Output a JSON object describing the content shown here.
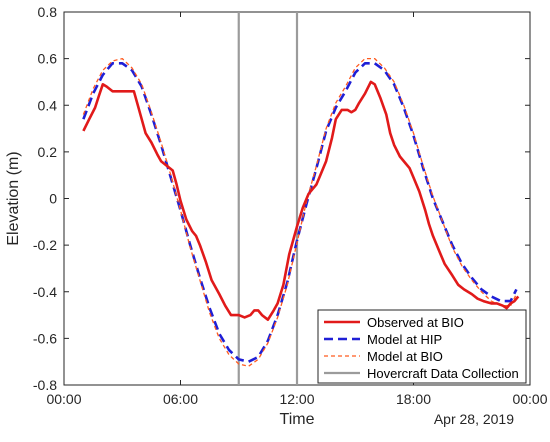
{
  "chart_data": {
    "type": "line",
    "title": "",
    "xlabel": "Time",
    "ylabel": "Elevation (m)",
    "annotation": "Apr 28, 2019",
    "xlim": [
      0,
      24
    ],
    "ylim": [
      -0.8,
      0.8
    ],
    "x_ticks": [
      0,
      6,
      12,
      18,
      24
    ],
    "x_tick_labels": [
      "00:00",
      "06:00",
      "12:00",
      "18:00",
      "00:00"
    ],
    "y_ticks": [
      -0.8,
      -0.6,
      -0.4,
      -0.2,
      0,
      0.2,
      0.4,
      0.6,
      0.8
    ],
    "y_tick_labels": [
      "-0.8",
      "-0.6",
      "-0.4",
      "-0.2",
      "0",
      "0.2",
      "0.4",
      "0.6",
      "0.8"
    ],
    "grid": false,
    "legend_position": "bottom-right",
    "vlines": {
      "name": "Hovercraft Data Collection",
      "x": [
        9.0,
        12.0
      ],
      "color": "#9b9b9b"
    },
    "series": [
      {
        "name": "Observed at BIO",
        "color": "#e11a1a",
        "style": "solid",
        "x": [
          1.0,
          1.3,
          1.6,
          1.8,
          2.0,
          2.2,
          2.5,
          2.8,
          3.0,
          3.3,
          3.6,
          3.8,
          4.0,
          4.2,
          4.5,
          4.8,
          5.0,
          5.3,
          5.6,
          5.8,
          6.0,
          6.3,
          6.6,
          6.8,
          7.0,
          7.3,
          7.6,
          8.0,
          8.3,
          8.6,
          9.0,
          9.3,
          9.6,
          9.8,
          10.0,
          10.2,
          10.5,
          10.8,
          11.0,
          11.3,
          11.6,
          12.0,
          12.3,
          12.6,
          12.8,
          13.0,
          13.2,
          13.5,
          13.8,
          14.0,
          14.3,
          14.6,
          14.8,
          15.0,
          15.2,
          15.5,
          15.8,
          16.0,
          16.3,
          16.6,
          16.8,
          17.0,
          17.3,
          17.6,
          17.8,
          18.0,
          18.3,
          18.6,
          18.8,
          19.0,
          19.3,
          19.6,
          20.0,
          20.3,
          20.6,
          21.0,
          21.3,
          21.6,
          22.0,
          22.3,
          22.6,
          22.8,
          23.0,
          23.2,
          23.4
        ],
        "values": [
          0.29,
          0.34,
          0.39,
          0.44,
          0.49,
          0.48,
          0.46,
          0.46,
          0.46,
          0.46,
          0.46,
          0.4,
          0.34,
          0.28,
          0.24,
          0.19,
          0.16,
          0.14,
          0.12,
          0.06,
          -0.01,
          -0.09,
          -0.14,
          -0.16,
          -0.2,
          -0.27,
          -0.35,
          -0.41,
          -0.46,
          -0.5,
          -0.5,
          -0.51,
          -0.5,
          -0.48,
          -0.48,
          -0.5,
          -0.52,
          -0.48,
          -0.45,
          -0.37,
          -0.24,
          -0.12,
          -0.04,
          0.02,
          0.04,
          0.06,
          0.1,
          0.16,
          0.26,
          0.34,
          0.38,
          0.38,
          0.37,
          0.38,
          0.41,
          0.45,
          0.5,
          0.49,
          0.43,
          0.36,
          0.28,
          0.23,
          0.18,
          0.15,
          0.13,
          0.09,
          0.03,
          -0.05,
          -0.11,
          -0.16,
          -0.22,
          -0.28,
          -0.33,
          -0.37,
          -0.39,
          -0.41,
          -0.43,
          -0.44,
          -0.45,
          -0.45,
          -0.46,
          -0.47,
          -0.45,
          -0.44,
          -0.42
        ]
      },
      {
        "name": "Model at HIP",
        "color": "#1f1fd6",
        "style": "dashed",
        "x": [
          1.0,
          1.5,
          2.0,
          2.5,
          3.0,
          3.5,
          4.0,
          4.5,
          5.0,
          5.5,
          6.0,
          6.5,
          7.0,
          7.5,
          8.0,
          8.5,
          9.0,
          9.5,
          10.0,
          10.5,
          11.0,
          11.5,
          12.0,
          12.5,
          13.0,
          13.5,
          14.0,
          14.5,
          15.0,
          15.5,
          16.0,
          16.5,
          17.0,
          17.5,
          18.0,
          18.5,
          19.0,
          19.5,
          20.0,
          20.5,
          21.0,
          21.5,
          22.0,
          22.5,
          23.0,
          23.3
        ],
        "values": [
          0.34,
          0.45,
          0.53,
          0.58,
          0.58,
          0.55,
          0.48,
          0.36,
          0.23,
          0.09,
          -0.05,
          -0.2,
          -0.34,
          -0.47,
          -0.58,
          -0.65,
          -0.69,
          -0.7,
          -0.68,
          -0.61,
          -0.5,
          -0.36,
          -0.18,
          -0.02,
          0.13,
          0.29,
          0.39,
          0.46,
          0.54,
          0.58,
          0.58,
          0.55,
          0.49,
          0.39,
          0.27,
          0.13,
          0.0,
          -0.1,
          -0.2,
          -0.28,
          -0.34,
          -0.39,
          -0.42,
          -0.44,
          -0.44,
          -0.39
        ]
      },
      {
        "name": "Model at BIO",
        "color": "#ff5a1f",
        "style": "dashed-thin",
        "x": [
          1.0,
          1.5,
          2.0,
          2.5,
          3.0,
          3.5,
          4.0,
          4.5,
          5.0,
          5.5,
          6.0,
          6.5,
          7.0,
          7.5,
          8.0,
          8.5,
          9.0,
          9.5,
          10.0,
          10.5,
          11.0,
          11.5,
          12.0,
          12.5,
          13.0,
          13.5,
          14.0,
          14.5,
          15.0,
          15.5,
          16.0,
          16.5,
          17.0,
          17.5,
          18.0,
          18.5,
          19.0,
          19.5,
          20.0,
          20.5,
          21.0,
          21.5,
          22.0,
          22.5,
          23.0,
          23.3
        ],
        "values": [
          0.36,
          0.47,
          0.55,
          0.59,
          0.6,
          0.56,
          0.49,
          0.37,
          0.24,
          0.1,
          -0.05,
          -0.21,
          -0.35,
          -0.49,
          -0.6,
          -0.67,
          -0.71,
          -0.72,
          -0.69,
          -0.62,
          -0.51,
          -0.37,
          -0.19,
          -0.01,
          0.14,
          0.3,
          0.41,
          0.48,
          0.56,
          0.6,
          0.6,
          0.56,
          0.5,
          0.4,
          0.28,
          0.14,
          0.01,
          -0.1,
          -0.21,
          -0.29,
          -0.35,
          -0.4,
          -0.44,
          -0.46,
          -0.46,
          -0.41
        ]
      }
    ]
  }
}
